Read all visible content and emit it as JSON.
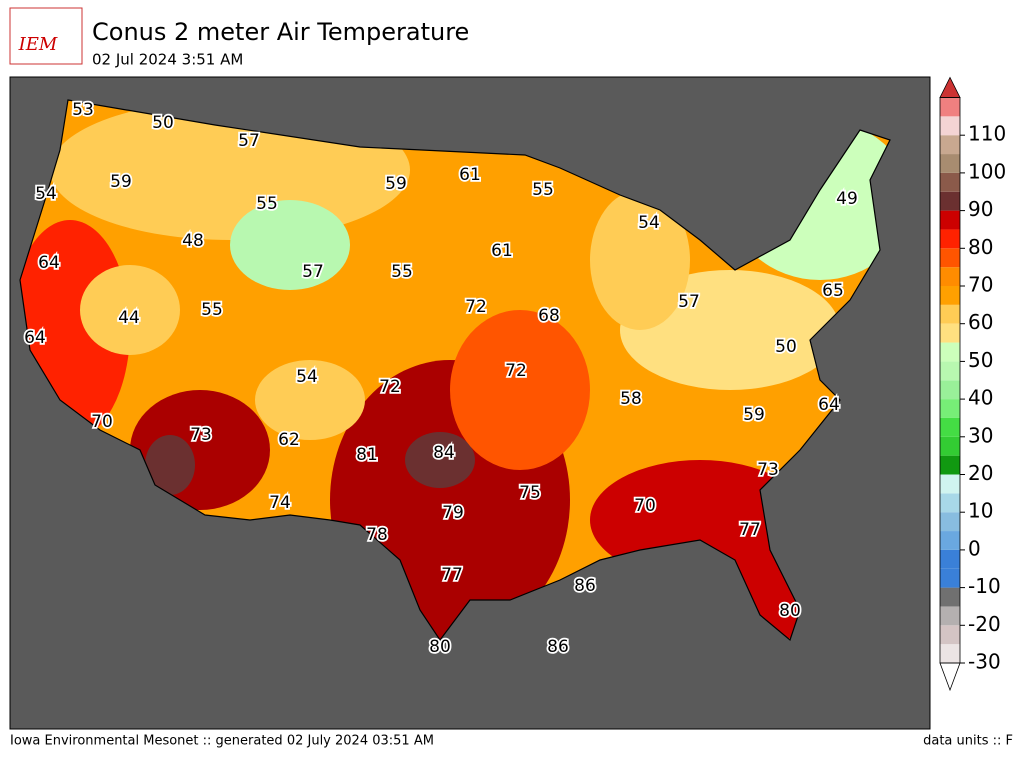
{
  "header": {
    "logo": "IEM",
    "title": "Conus 2 meter Air Temperature",
    "subtitle": "02 Jul 2024 3:51 AM"
  },
  "map": {
    "labels": [
      53,
      50,
      57,
      59,
      54,
      59,
      61,
      55,
      55,
      48,
      54,
      49,
      61,
      64,
      57,
      55,
      65,
      44,
      55,
      72,
      68,
      57,
      64,
      50,
      54,
      72,
      72,
      58,
      64,
      59,
      70,
      73,
      62,
      81,
      84,
      73,
      75,
      74,
      70,
      79,
      77,
      78,
      77,
      86,
      80,
      80,
      86
    ]
  },
  "colorbar": {
    "range": [
      -30,
      120
    ],
    "ticks": [
      -30,
      -20,
      -10,
      0,
      10,
      20,
      30,
      40,
      50,
      60,
      70,
      80,
      90,
      100,
      110
    ],
    "colors": [
      "#ece4e4",
      "#d4c4c4",
      "#b4b0b0",
      "#707070",
      "#3a80d8",
      "#3a80d8",
      "#6aa8e0",
      "#88bde0",
      "#a8d8e8",
      "#d0f4f0",
      "#119911",
      "#33cc33",
      "#44dd44",
      "#77ee77",
      "#99f099",
      "#b8f8b0",
      "#ccffbb",
      "#ffe080",
      "#ffcc55",
      "#ffa000",
      "#ff8c00",
      "#ff5500",
      "#ff2200",
      "#cc0000",
      "#6b3030",
      "#8b5a4a",
      "#a88c70",
      "#c8a890",
      "#f4d4d4",
      "#f08080"
    ]
  },
  "footer": {
    "left": "Iowa Environmental Mesonet :: generated 02 July 2024 03:51 AM",
    "right": "data units :: F"
  }
}
